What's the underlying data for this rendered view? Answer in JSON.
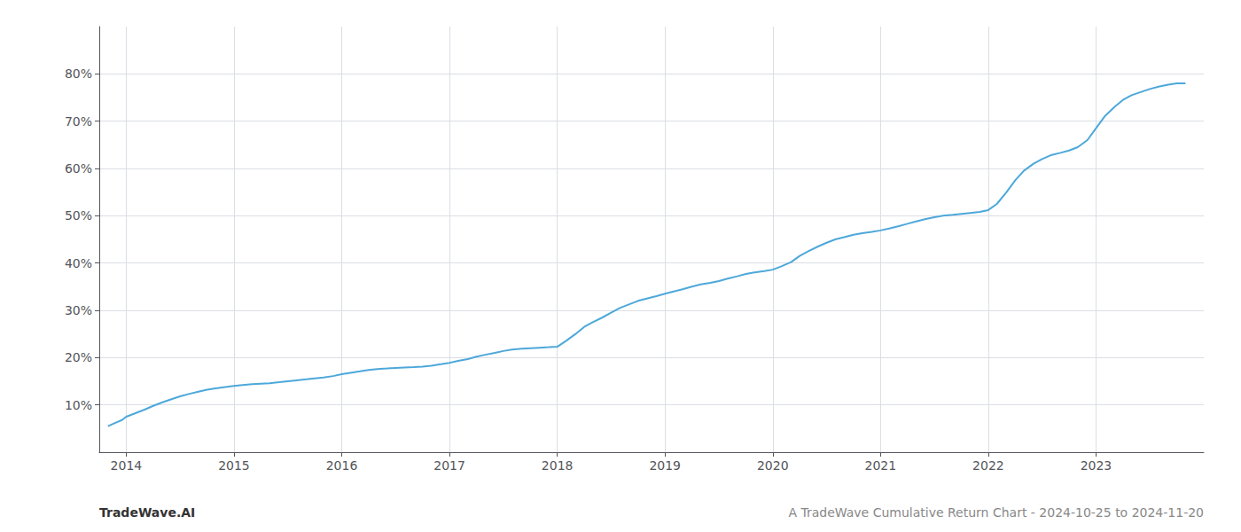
{
  "chart_data": {
    "type": "line",
    "x": [
      2013.83,
      2013.9,
      2013.96,
      2014.0,
      2014.08,
      2014.17,
      2014.25,
      2014.33,
      2014.42,
      2014.5,
      2014.58,
      2014.67,
      2014.75,
      2014.83,
      2014.92,
      2015.0,
      2015.08,
      2015.17,
      2015.25,
      2015.33,
      2015.42,
      2015.5,
      2015.58,
      2015.67,
      2015.75,
      2015.83,
      2015.92,
      2016.0,
      2016.08,
      2016.17,
      2016.25,
      2016.33,
      2016.42,
      2016.5,
      2016.58,
      2016.67,
      2016.75,
      2016.83,
      2016.92,
      2017.0,
      2017.08,
      2017.17,
      2017.25,
      2017.33,
      2017.42,
      2017.5,
      2017.58,
      2017.67,
      2017.75,
      2017.83,
      2017.92,
      2018.0,
      2018.08,
      2018.17,
      2018.25,
      2018.33,
      2018.42,
      2018.5,
      2018.58,
      2018.67,
      2018.75,
      2018.83,
      2018.92,
      2019.0,
      2019.08,
      2019.17,
      2019.25,
      2019.33,
      2019.42,
      2019.5,
      2019.58,
      2019.67,
      2019.75,
      2019.83,
      2019.92,
      2020.0,
      2020.08,
      2020.17,
      2020.25,
      2020.33,
      2020.42,
      2020.5,
      2020.58,
      2020.67,
      2020.75,
      2020.83,
      2020.92,
      2021.0,
      2021.08,
      2021.17,
      2021.25,
      2021.33,
      2021.42,
      2021.5,
      2021.58,
      2021.67,
      2021.75,
      2021.83,
      2021.92,
      2022.0,
      2022.08,
      2022.17,
      2022.25,
      2022.33,
      2022.42,
      2022.5,
      2022.58,
      2022.67,
      2022.75,
      2022.83,
      2022.92,
      2023.0,
      2023.08,
      2023.17,
      2023.25,
      2023.33,
      2023.42,
      2023.5,
      2023.58,
      2023.67,
      2023.75,
      2023.83
    ],
    "values": [
      5.5,
      6.2,
      6.8,
      7.5,
      8.2,
      9.0,
      9.8,
      10.5,
      11.2,
      11.8,
      12.3,
      12.8,
      13.2,
      13.5,
      13.8,
      14.0,
      14.2,
      14.4,
      14.5,
      14.6,
      14.8,
      15.0,
      15.2,
      15.4,
      15.6,
      15.8,
      16.1,
      16.5,
      16.8,
      17.1,
      17.4,
      17.6,
      17.7,
      17.8,
      17.9,
      18.0,
      18.1,
      18.3,
      18.6,
      18.9,
      19.3,
      19.7,
      20.2,
      20.6,
      21.0,
      21.4,
      21.7,
      21.9,
      22.0,
      22.1,
      22.2,
      22.3,
      23.5,
      25.0,
      26.5,
      27.5,
      28.5,
      29.5,
      30.5,
      31.3,
      32.0,
      32.5,
      33.0,
      33.5,
      34.0,
      34.5,
      35.0,
      35.5,
      35.8,
      36.2,
      36.7,
      37.2,
      37.7,
      38.0,
      38.3,
      38.6,
      39.3,
      40.2,
      41.5,
      42.5,
      43.5,
      44.3,
      45.0,
      45.5,
      46.0,
      46.3,
      46.6,
      46.9,
      47.3,
      47.8,
      48.3,
      48.8,
      49.3,
      49.7,
      50.0,
      50.2,
      50.4,
      50.6,
      50.8,
      51.2,
      52.5,
      55.0,
      57.5,
      59.5,
      61.0,
      62.0,
      62.8,
      63.3,
      63.8,
      64.5,
      66.0,
      68.5,
      71.0,
      73.0,
      74.5,
      75.5,
      76.2,
      76.8,
      77.3,
      77.7,
      78.0,
      78.0
    ],
    "color": "#4da8da",
    "xlim": [
      2013.75,
      2024.0
    ],
    "xticks": [
      2014,
      2015,
      2016,
      2017,
      2018,
      2019,
      2020,
      2021,
      2022,
      2023
    ],
    "ylim": [
      0,
      90
    ],
    "yticks": [
      {
        "value": 10,
        "label": "10%"
      },
      {
        "value": 20,
        "label": "20%"
      },
      {
        "value": 30,
        "label": "30%"
      },
      {
        "value": 40,
        "label": "40%"
      },
      {
        "value": 50,
        "label": "50%"
      },
      {
        "value": 60,
        "label": "60%"
      },
      {
        "value": 70,
        "label": "70%"
      },
      {
        "value": 80,
        "label": "80%"
      }
    ],
    "grid": true,
    "annotations": [
      "TradeWave.AI",
      "A TradeWave Cumulative Return Chart - 2024-10-25 to 2024-11-20"
    ]
  }
}
